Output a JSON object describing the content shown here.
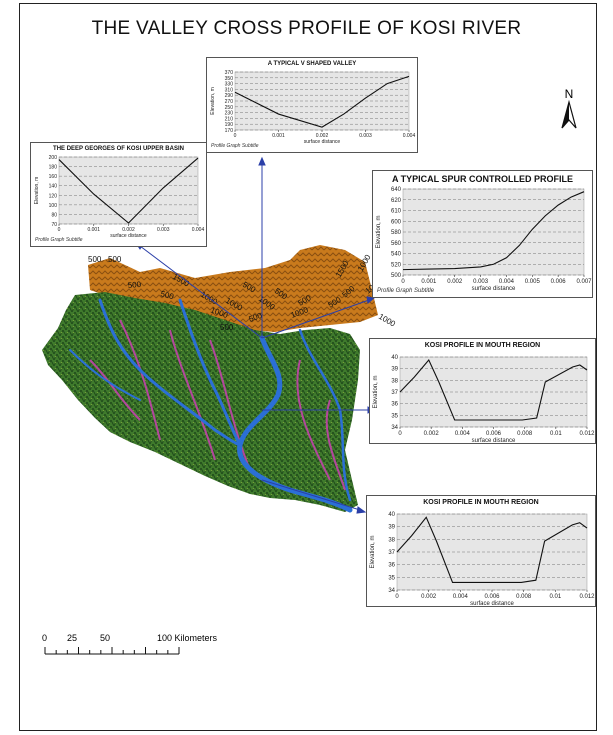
{
  "title": "THE VALLEY CROSS PROFILE OF KOSI RIVER",
  "north_label": "N",
  "scale": {
    "labels": [
      "0",
      "25",
      "50",
      "100 Kilometers"
    ],
    "values_km": [
      0,
      25,
      50,
      100
    ]
  },
  "map": {
    "colors": {
      "basin_green": "#3f7a2c",
      "basin_dark": "#1f4a1a",
      "highland_orange": "#c97a1c",
      "river_blue": "#2b6fd6",
      "tributary_magenta": "#b3479c",
      "connector_blue": "#2b3fa8"
    },
    "contours": [
      {
        "text": "500"
      },
      {
        "text": "500"
      },
      {
        "text": "500"
      },
      {
        "text": "1500"
      },
      {
        "text": "1000"
      },
      {
        "text": "1000"
      },
      {
        "text": "500"
      },
      {
        "text": "1000"
      },
      {
        "text": "500"
      },
      {
        "text": "500"
      },
      {
        "text": "1000"
      },
      {
        "text": "500"
      },
      {
        "text": "1000"
      },
      {
        "text": "500"
      },
      {
        "text": "1500"
      },
      {
        "text": "1000"
      },
      {
        "text": "500"
      },
      {
        "text": "1000"
      },
      {
        "text": "1000"
      },
      {
        "text": "500"
      },
      {
        "text": "500"
      }
    ]
  },
  "chart_data": [
    {
      "type": "line",
      "title": "THE DEEP GEORGES OF KOSI UPPER BASIN",
      "subtitle": "Profile Graph Subtitle",
      "xlabel": "surface distance",
      "ylabel": "Elevation, m",
      "xlim": [
        0,
        0.004
      ],
      "ylim": [
        70,
        200
      ],
      "yticks": [
        "200",
        "180",
        "160",
        "140",
        "120",
        "100",
        "80",
        "70"
      ],
      "xticks": [
        "0",
        "0.001",
        "0.002",
        "0.003",
        "0.004"
      ],
      "x": [
        0,
        0.001,
        0.002,
        0.003,
        0.004
      ],
      "y": [
        195,
        128,
        72,
        140,
        198
      ]
    },
    {
      "type": "line",
      "title": "A TYPICAL V SHAPED VALLEY",
      "subtitle": "Profile Graph Subtitle",
      "xlabel": "surface distance",
      "ylabel": "Elevation, m",
      "xlim": [
        0,
        0.004
      ],
      "ylim": [
        170,
        370
      ],
      "yticks": [
        "370",
        "350",
        "330",
        "310",
        "290",
        "270",
        "250",
        "230",
        "210",
        "190",
        "170"
      ],
      "xticks": [
        "0",
        "0.001",
        "0.002",
        "0.003",
        "0.004"
      ],
      "x": [
        0,
        0.001,
        0.002,
        0.0025,
        0.003,
        0.0035,
        0.004
      ],
      "y": [
        300,
        225,
        180,
        225,
        280,
        330,
        355
      ]
    },
    {
      "type": "line",
      "title": "A TYPICAL SPUR CONTROLLED PROFILE",
      "subtitle": "Profile Graph Subtitle",
      "xlabel": "surface distance",
      "ylabel": "Elevation, m",
      "xlim": [
        0,
        0.007
      ],
      "ylim": [
        490,
        650
      ],
      "yticks": [
        "640",
        "620",
        "610",
        "600",
        "580",
        "560",
        "540",
        "520",
        "500"
      ],
      "xticks": [
        "0",
        "0.001",
        "0.002",
        "0.003",
        "0.004",
        "0.005",
        "0.006",
        "0.007"
      ],
      "x": [
        0,
        0.001,
        0.002,
        0.003,
        0.0035,
        0.004,
        0.0045,
        0.005,
        0.0055,
        0.006,
        0.0065,
        0.007
      ],
      "y": [
        500,
        501,
        502,
        505,
        510,
        522,
        545,
        575,
        600,
        620,
        635,
        645
      ]
    },
    {
      "type": "line",
      "title": "KOSI PROFILE IN MOUTH REGION",
      "subtitle": "",
      "xlabel": "surface distance",
      "ylabel": "Elevation, m",
      "xlim": [
        0,
        0.013
      ],
      "ylim": [
        33.5,
        40.5
      ],
      "yticks": [
        "40",
        "39",
        "38",
        "37",
        "36",
        "35",
        "34"
      ],
      "xticks": [
        "0",
        "0.002",
        "0.004",
        "0.006",
        "0.008",
        "0.01",
        "0.012"
      ],
      "x": [
        0,
        0.001,
        0.002,
        0.0027,
        0.0038,
        0.006,
        0.0085,
        0.0095,
        0.0101,
        0.012,
        0.0125,
        0.013
      ],
      "y": [
        37,
        38.5,
        40.2,
        38,
        34.2,
        34.2,
        34.2,
        34.4,
        38,
        39.5,
        39.7,
        39.2
      ]
    },
    {
      "type": "line",
      "title": "KOSI PROFILE IN MOUTH REGION",
      "subtitle": "",
      "xlabel": "surface distance",
      "ylabel": "Elevation, m",
      "xlim": [
        0,
        0.013
      ],
      "ylim": [
        33.5,
        40.5
      ],
      "yticks": [
        "40",
        "39",
        "38",
        "37",
        "36",
        "35",
        "34"
      ],
      "xticks": [
        "0",
        "0.002",
        "0.004",
        "0.006",
        "0.008",
        "0.01",
        "0.012"
      ],
      "x": [
        0,
        0.001,
        0.002,
        0.0027,
        0.0038,
        0.006,
        0.0085,
        0.0095,
        0.0101,
        0.012,
        0.0125,
        0.013
      ],
      "y": [
        37,
        38.5,
        40.2,
        38,
        34.2,
        34.2,
        34.2,
        34.4,
        38,
        39.5,
        39.7,
        39.2
      ]
    }
  ]
}
